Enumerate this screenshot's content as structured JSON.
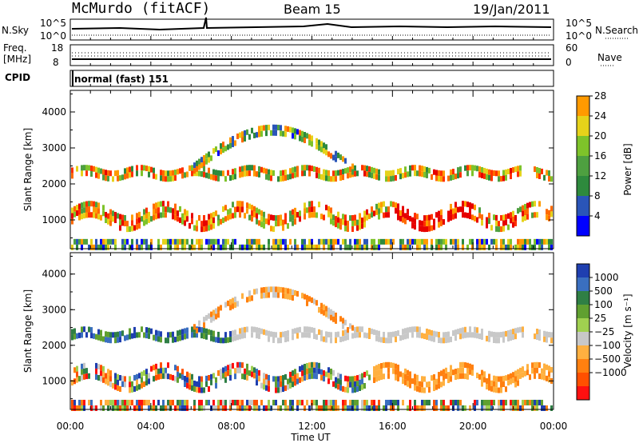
{
  "header": {
    "station": "McMurdo (fitACF)",
    "beam": "Beam 15",
    "date": "19/Jan/2011"
  },
  "sky_panel": {
    "left_label": "N.Sky",
    "left_ticks": [
      "10^5",
      "10^0"
    ],
    "right_ticks": [
      "10^5",
      "10^0"
    ],
    "right_label": "N.Search"
  },
  "freq_panel": {
    "left_label_line1": "Freq.",
    "left_label_line2": "[MHz]",
    "left_ticks": [
      "18",
      "8"
    ],
    "right_ticks": [
      "60",
      "0"
    ],
    "right_label": "Nave"
  },
  "cpid": {
    "label": "CPID",
    "value": "normal (fast) 151"
  },
  "colors": {
    "white": "#ffffff",
    "power_scale": [
      "#0000ff",
      "#2a55b8",
      "#2e8a3d",
      "#4ea040",
      "#7ec32a",
      "#e6d21a",
      "#ff9a00",
      "#ff6a00",
      "#ff3000",
      "#e60000"
    ],
    "velocity_scale": [
      "#1f3fb0",
      "#3a6fc0",
      "#2f7f45",
      "#60a030",
      "#a0d050",
      "#c8c8c8",
      "#ffb040",
      "#ff8010",
      "#ff5000",
      "#ff1010"
    ]
  },
  "chart_data": [
    {
      "type": "heatmap",
      "panel": "power",
      "ylabel": "Slant Range [km]",
      "ylim": [
        200,
        4600
      ],
      "yticks": [
        "1000",
        "2000",
        "3000",
        "4000"
      ],
      "xlim": [
        0,
        24
      ],
      "colorbar_label": "Power [dB]",
      "colorbar_ticks": [
        "4",
        "8",
        "12",
        "16",
        "20",
        "24",
        "28"
      ]
    },
    {
      "type": "heatmap",
      "panel": "velocity",
      "ylabel": "Slant Range [km]",
      "ylim": [
        200,
        4600
      ],
      "yticks": [
        "1000",
        "2000",
        "3000",
        "4000"
      ],
      "xlim": [
        0,
        24
      ],
      "xticks": [
        "00:00",
        "04:00",
        "08:00",
        "12:00",
        "16:00",
        "20:00",
        "00:00"
      ],
      "xlabel": "Time UT",
      "colorbar_label": "Velocity [m s⁻¹]",
      "colorbar_ticks": [
        "1000",
        "500",
        "100",
        "25",
        "−25",
        "−100",
        "−500",
        "−1000"
      ]
    }
  ]
}
